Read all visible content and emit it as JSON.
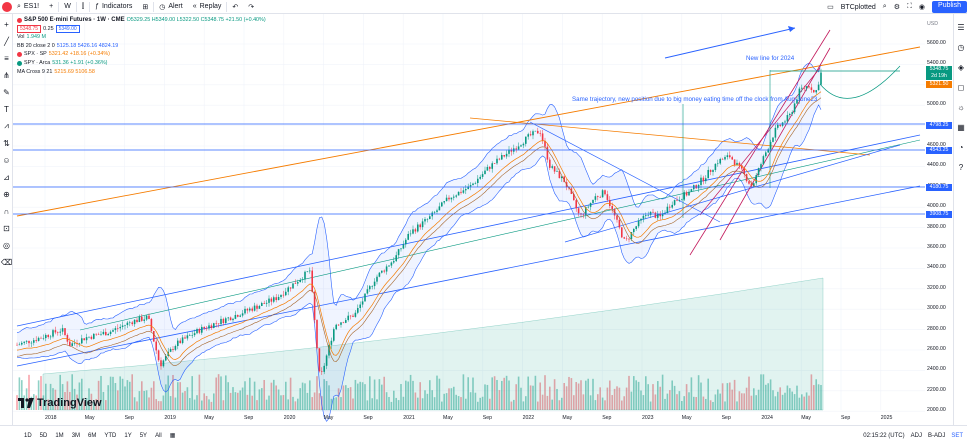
{
  "toolbar": {
    "symbol": "ES1!",
    "interval": "W",
    "indicators_label": "Indicators",
    "alert_label": "Alert",
    "replay_label": "Replay",
    "layout_name": "BTCplotted",
    "publish_label": "Publish"
  },
  "legend": {
    "title": "S&P 500 E-mini Futures · 1W · CME",
    "ohlc": "O5329.25 H5349.00 L5322.50 C5348.75 +21.50 (+0.40%)",
    "bid": "5348.75",
    "spread": "0.25",
    "ask": "5349.00",
    "volume_label": "Vol",
    "volume_value": "1.949 M",
    "bb_label": "BB 20 close 2 0",
    "bb_values": "5125.18  5426.16  4824.19",
    "spx_label": "SPX · SP",
    "spx_values": "5321.42 +18.16 (+0.34%)",
    "spy_label": "SPY · Arca",
    "spy_values": "531.36 +1.91 (+0.36%)",
    "ma_label": "MA Cross 9 21",
    "ma_values": "5215.69  5106.58"
  },
  "annotations": {
    "new_line": "New line for 2024",
    "same_trajectory": "Same trajectory, new position due to big money eating time off the clock from Aug-June23"
  },
  "price_axis": {
    "currency": "USD",
    "ticks": [
      "5600.00",
      "5400.00",
      "5200.00",
      "5000.00",
      "4800.00",
      "4600.00",
      "4400.00",
      "4200.00",
      "4000.00",
      "3800.00",
      "3600.00",
      "3400.00",
      "3200.00",
      "3000.00",
      "2800.00",
      "2600.00",
      "2400.00",
      "2200.00",
      "2000.00"
    ],
    "tags": {
      "last_price": "5348.75",
      "countdown": "2d 19h",
      "spx_price": "5321.50",
      "level_1": "4798.25",
      "level_2": "4543.25",
      "level_3": "4180.75",
      "level_4": "3908.75"
    }
  },
  "time_axis": [
    "2018",
    "May",
    "Sep",
    "2019",
    "May",
    "Sep",
    "2020",
    "May",
    "Sep",
    "2021",
    "May",
    "Sep",
    "2022",
    "May",
    "Sep",
    "2023",
    "May",
    "Sep",
    "2024",
    "May",
    "Sep",
    "2025"
  ],
  "bottom_bar": {
    "ranges": [
      "1D",
      "5D",
      "1M",
      "3M",
      "6M",
      "YTD",
      "1Y",
      "5Y",
      "All"
    ],
    "clock": "02:15:22 (UTC)",
    "adj": "ADJ",
    "badj": "B-ADJ",
    "set": "SET"
  },
  "brand": "TradingView",
  "colors": {
    "up": "#089981",
    "down": "#f23645",
    "accent": "#2962ff",
    "orange_line": "#f57c00",
    "bollinger": "#2962ff"
  }
}
